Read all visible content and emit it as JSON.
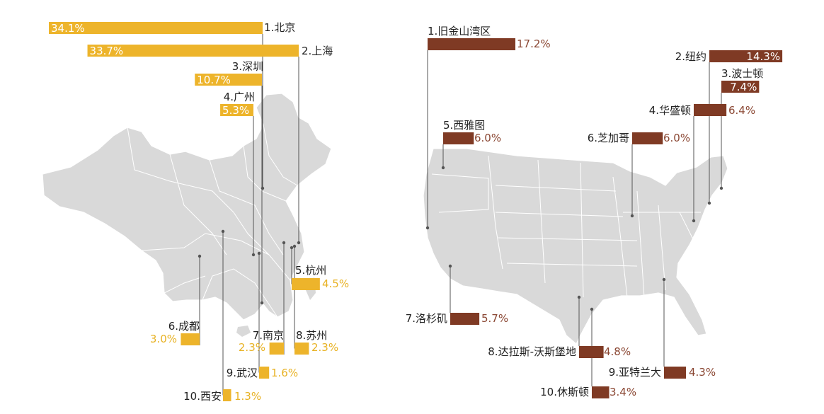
{
  "chart_data": [
    {
      "type": "bar",
      "region": "China",
      "color": "#EDB42B",
      "categories": [
        "1.北京",
        "2.上海",
        "3.深圳",
        "4.广州",
        "5.杭州",
        "6.成都",
        "7.南京",
        "8.苏州",
        "9.武汉",
        "10.西安"
      ],
      "values": [
        34.1,
        33.7,
        10.7,
        5.3,
        4.5,
        3.0,
        2.3,
        2.3,
        1.6,
        1.3
      ],
      "value_labels": [
        "34.1%",
        "33.7%",
        "10.7%",
        "5.3%",
        "4.5%",
        "3.0%",
        "2.3%",
        "2.3%",
        "1.6%",
        "1.3%"
      ]
    },
    {
      "type": "bar",
      "region": "United States",
      "color": "#7F3A24",
      "categories": [
        "1.旧金山湾区",
        "2.纽约",
        "3.波士顿",
        "4.华盛顿",
        "5.西雅图",
        "6.芝加哥",
        "7.洛杉矶",
        "8.达拉斯-沃斯堡地",
        "9.亚特兰大",
        "10.休斯顿"
      ],
      "values": [
        17.2,
        14.3,
        7.4,
        6.4,
        6.0,
        6.0,
        5.7,
        4.8,
        4.3,
        3.4
      ],
      "value_labels": [
        "17.2%",
        "14.3%",
        "7.4%",
        "6.4%",
        "6.0%",
        "6.0%",
        "5.7%",
        "4.8%",
        "4.3%",
        "3.4%"
      ]
    }
  ],
  "colors": {
    "map": "#D9D9D9",
    "map_border": "#ffffff",
    "leader": "#555555"
  }
}
